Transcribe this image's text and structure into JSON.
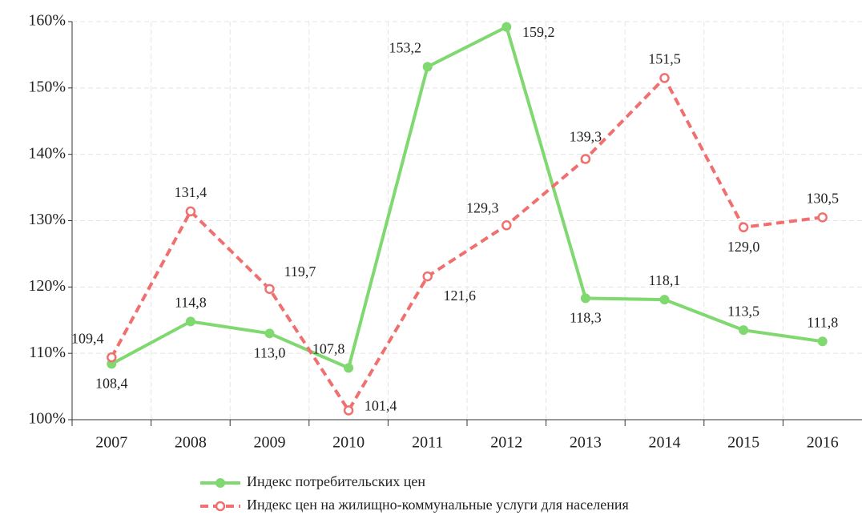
{
  "chart_data": {
    "type": "line",
    "categories": [
      "2007",
      "2008",
      "2009",
      "2010",
      "2011",
      "2012",
      "2013",
      "2014",
      "2015",
      "2016"
    ],
    "series": [
      {
        "name": "Индекс потребительских цен",
        "color": "#7fd870",
        "values": [
          108.4,
          114.8,
          113.0,
          107.8,
          153.2,
          159.2,
          118.3,
          118.1,
          113.5,
          111.8
        ],
        "value_labels": [
          "108,4",
          "114,8",
          "113,0",
          "107,8",
          "153,2",
          "159,2",
          "118,3",
          "118,1",
          "113,5",
          "111,8"
        ]
      },
      {
        "name": "Индекс цен на жилищно-коммунальные услуги для населения",
        "color": "#f07070",
        "values": [
          109.4,
          131.4,
          119.7,
          101.4,
          121.6,
          129.3,
          139.3,
          151.5,
          129.0,
          130.5
        ],
        "value_labels": [
          "109,4",
          "131,4",
          "119,7",
          "101,4",
          "121,6",
          "129,3",
          "139,3",
          "151,5",
          "129,0",
          "130,5"
        ]
      }
    ],
    "ylim": [
      100,
      160
    ],
    "yticks": [
      {
        "value": 100,
        "label": "100%"
      },
      {
        "value": 110,
        "label": "110%"
      },
      {
        "value": 120,
        "label": "120%"
      },
      {
        "value": 130,
        "label": "130%"
      },
      {
        "value": 140,
        "label": "140%"
      },
      {
        "value": 150,
        "label": "150%"
      },
      {
        "value": 160,
        "label": "160%"
      }
    ],
    "grid": true
  }
}
